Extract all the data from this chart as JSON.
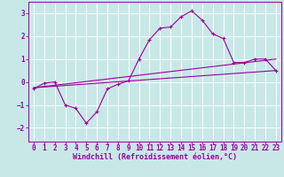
{
  "xlabel": "Windchill (Refroidissement éolien,°C)",
  "bg_color": "#c8e8e8",
  "line_color": "#990099",
  "grid_color": "#ffffff",
  "xlim": [
    -0.5,
    23.5
  ],
  "ylim": [
    -2.6,
    3.5
  ],
  "xticks": [
    0,
    1,
    2,
    3,
    4,
    5,
    6,
    7,
    8,
    9,
    10,
    11,
    12,
    13,
    14,
    15,
    16,
    17,
    18,
    19,
    20,
    21,
    22,
    23
  ],
  "yticks": [
    -2,
    -1,
    0,
    1,
    2,
    3
  ],
  "main_x": [
    0,
    1,
    2,
    3,
    4,
    5,
    6,
    7,
    8,
    9,
    10,
    11,
    12,
    13,
    14,
    15,
    16,
    17,
    18,
    19,
    20,
    21,
    22,
    23
  ],
  "main_y": [
    -0.3,
    -0.05,
    0.0,
    -1.0,
    -1.15,
    -1.8,
    -1.3,
    -0.3,
    -0.1,
    0.05,
    1.0,
    1.85,
    2.35,
    2.4,
    2.85,
    3.1,
    2.7,
    2.1,
    1.9,
    0.85,
    0.85,
    1.0,
    1.0,
    0.5
  ],
  "line1_x": [
    0,
    23
  ],
  "line1_y": [
    -0.25,
    0.5
  ],
  "line2_x": [
    0,
    23
  ],
  "line2_y": [
    -0.25,
    1.0
  ],
  "tick_fontsize": 5.5,
  "xlabel_fontsize": 6.0
}
